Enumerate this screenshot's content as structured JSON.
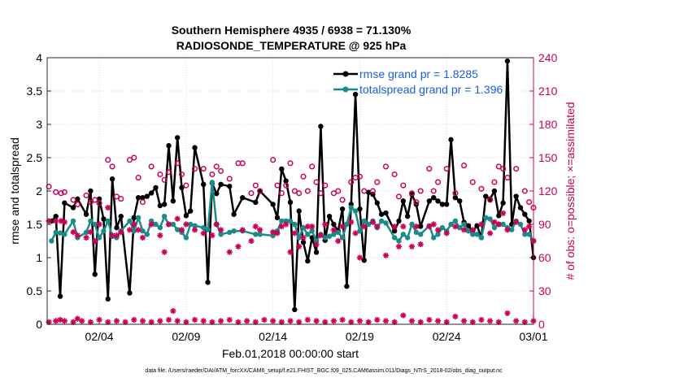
{
  "chart_data": {
    "type": "line",
    "title": "Southern Hemisphere 4935 / 6938 = 71.130%",
    "subtitle": "RADIOSONDE_TEMPERATURE @ 925 hPa",
    "xlabel": "Feb.01,2018 00:00:00 start",
    "ylabel": "rmse and totalspread",
    "y2label": "# of obs: o=possible; ×=assimilated",
    "xlim": [
      0,
      28
    ],
    "ylim": [
      0,
      4
    ],
    "y2lim": [
      0,
      240
    ],
    "x_ticks": [
      3,
      8,
      13,
      18,
      23,
      28
    ],
    "x_tick_labels": [
      "02/04",
      "02/09",
      "02/14",
      "02/19",
      "02/24",
      "03/01"
    ],
    "y_ticks": [
      0,
      0.5,
      1,
      1.5,
      2,
      2.5,
      3,
      3.5,
      4
    ],
    "y_tick_labels": [
      "0",
      "0.5",
      "1",
      "1.5",
      "2",
      "2.5",
      "3",
      "3.5",
      "4"
    ],
    "y2_ticks": [
      0,
      30,
      60,
      90,
      120,
      150,
      180,
      210,
      240
    ],
    "y2_tick_labels": [
      "0",
      "30",
      "60",
      "90",
      "120",
      "150",
      "180",
      "210",
      "240"
    ],
    "legend": [
      {
        "name": "rmse grand pr = 1.8285",
        "color": "#000000"
      },
      {
        "name": "totalspread grand pr = 1.396",
        "color": "#1a8a8a"
      }
    ],
    "series": [
      {
        "name": "rmse",
        "color": "#000000",
        "x": [
          0.25,
          0.5,
          0.75,
          1.0,
          1.5,
          1.75,
          2.25,
          2.5,
          2.75,
          3.0,
          3.25,
          3.5,
          3.75,
          4.0,
          4.25,
          4.75,
          5.0,
          5.25,
          5.5,
          5.75,
          6.0,
          6.25,
          6.5,
          6.75,
          7.0,
          7.25,
          7.5,
          7.75,
          8.0,
          8.25,
          8.5,
          9.0,
          9.25,
          9.5,
          9.75,
          10.0,
          10.5,
          10.75,
          11.25,
          12.0,
          12.25,
          13.0,
          13.25,
          13.5,
          13.75,
          14.0,
          14.25,
          14.5,
          14.75,
          15.0,
          15.25,
          15.5,
          15.75,
          16.0,
          16.25,
          16.5,
          16.75,
          17.0,
          17.25,
          17.5,
          17.75,
          18.0,
          18.25,
          18.5,
          18.75,
          19.0,
          19.25,
          19.5,
          20.0,
          20.25,
          20.5,
          20.75,
          21.0,
          21.25,
          21.5,
          22.0,
          22.25,
          22.5,
          22.75,
          23.0,
          23.25,
          23.5,
          23.75,
          24.0,
          24.25,
          24.5,
          24.75,
          25.0,
          25.25,
          25.5,
          25.75,
          26.0,
          26.25,
          26.5,
          26.75,
          27.0,
          27.25,
          27.5,
          27.75,
          28.0
        ],
        "values": [
          1.55,
          1.62,
          0.42,
          1.82,
          1.75,
          1.88,
          1.65,
          2.0,
          0.75,
          1.88,
          1.58,
          0.38,
          2.18,
          1.45,
          1.62,
          0.47,
          1.6,
          1.9,
          1.9,
          1.92,
          1.97,
          2.05,
          1.78,
          1.8,
          2.68,
          1.85,
          2.8,
          2.05,
          1.63,
          1.7,
          2.65,
          2.1,
          0.63,
          2.12,
          1.96,
          2.1,
          2.07,
          1.65,
          1.9,
          1.83,
          2.0,
          1.8,
          1.6,
          2.33,
          2.15,
          1.83,
          0.22,
          1.7,
          1.23,
          0.95,
          1.3,
          1.08,
          2.97,
          1.26,
          1.62,
          1.5,
          1.4,
          1.73,
          0.57,
          1.8,
          3.45,
          1.73,
          0.96,
          1.98,
          1.95,
          1.82,
          1.65,
          1.67,
          1.4,
          1.55,
          1.85,
          1.62,
          1.95,
          1.8,
          1.47,
          1.85,
          1.9,
          1.85,
          1.8,
          1.8,
          2.77,
          1.9,
          1.85,
          1.53,
          1.48,
          1.4,
          1.48,
          1.3,
          1.92,
          1.88,
          2.0,
          1.63,
          1.82,
          3.95,
          1.5,
          1.92,
          1.75,
          1.65,
          1.55,
          1.0
        ]
      },
      {
        "name": "totalspread",
        "color": "#1a8a8a",
        "x": [
          0.25,
          0.5,
          0.75,
          1.0,
          1.5,
          1.75,
          2.25,
          2.5,
          2.75,
          3.0,
          3.25,
          3.5,
          3.75,
          4.0,
          4.25,
          4.75,
          5.0,
          5.25,
          5.5,
          5.75,
          6.0,
          6.25,
          6.5,
          6.75,
          7.0,
          7.25,
          7.5,
          7.75,
          8.0,
          8.25,
          8.5,
          9.0,
          9.25,
          9.5,
          9.75,
          10.0,
          10.5,
          10.75,
          11.25,
          12.0,
          12.25,
          13.0,
          13.25,
          13.5,
          13.75,
          14.0,
          14.25,
          14.5,
          14.75,
          15.0,
          15.25,
          15.5,
          15.75,
          16.0,
          16.25,
          16.5,
          16.75,
          17.0,
          17.25,
          17.5,
          17.75,
          18.0,
          18.25,
          18.5,
          18.75,
          19.0,
          19.25,
          19.5,
          20.0,
          20.25,
          20.5,
          20.75,
          21.0,
          21.25,
          21.5,
          22.0,
          22.25,
          22.5,
          22.75,
          23.0,
          23.25,
          23.5,
          23.75,
          24.0,
          24.25,
          24.5,
          24.75,
          25.0,
          25.25,
          25.5,
          25.75,
          26.0,
          26.25,
          26.5,
          26.75,
          27.0,
          27.25,
          27.5,
          27.75,
          28.0
        ],
        "values": [
          1.25,
          1.38,
          1.37,
          1.35,
          1.55,
          1.3,
          1.38,
          1.55,
          1.5,
          1.3,
          1.4,
          1.55,
          1.32,
          1.3,
          1.4,
          1.55,
          1.4,
          1.6,
          1.4,
          1.35,
          1.55,
          1.5,
          1.45,
          1.62,
          1.5,
          1.5,
          1.42,
          1.38,
          1.3,
          1.5,
          1.48,
          1.45,
          1.42,
          2.13,
          1.5,
          1.35,
          1.38,
          1.4,
          1.4,
          1.35,
          1.35,
          1.33,
          1.4,
          1.55,
          1.55,
          1.55,
          1.5,
          1.3,
          1.45,
          1.35,
          1.4,
          1.25,
          1.35,
          1.3,
          1.32,
          1.35,
          1.38,
          1.3,
          1.5,
          1.75,
          1.7,
          1.4,
          1.55,
          1.5,
          1.55,
          1.45,
          1.55,
          1.52,
          1.3,
          1.25,
          1.35,
          1.3,
          1.5,
          1.38,
          1.35,
          1.48,
          1.3,
          1.35,
          1.45,
          1.4,
          1.5,
          1.55,
          1.45,
          1.5,
          1.4,
          1.35,
          1.35,
          1.3,
          1.6,
          1.58,
          1.45,
          1.5,
          1.5,
          1.45,
          1.42,
          1.55,
          1.5,
          1.35,
          1.35,
          1.25
        ]
      },
      {
        "name": "obs possible",
        "axis": "right",
        "marker": "o",
        "color": "#cc0055",
        "x": [
          0.1,
          0.5,
          0.8,
          1.0,
          1.5,
          1.75,
          2.25,
          2.5,
          2.75,
          3.0,
          3.5,
          3.75,
          4.0,
          4.25,
          4.75,
          5.0,
          5.25,
          5.5,
          6.0,
          6.5,
          6.75,
          7.0,
          7.5,
          7.75,
          8.0,
          8.5,
          9.0,
          9.5,
          9.75,
          10.0,
          10.5,
          11.0,
          11.25,
          11.75,
          12.0,
          12.25,
          13.0,
          13.25,
          13.5,
          13.75,
          14.0,
          14.25,
          14.5,
          14.75,
          15.0,
          15.25,
          15.5,
          15.75,
          16.0,
          16.5,
          16.75,
          17.0,
          17.5,
          17.75,
          18.0,
          18.25,
          18.75,
          19.0,
          19.5,
          20.0,
          20.25,
          20.5,
          21.0,
          21.25,
          21.5,
          22.0,
          22.25,
          22.5,
          23.0,
          23.5,
          24.0,
          24.5,
          25.0,
          25.5,
          25.75,
          26.0,
          26.25,
          26.5,
          27.0,
          27.5,
          27.75,
          28.0
        ],
        "values": [
          124,
          119,
          118,
          119,
          112,
          108,
          116,
          110,
          112,
          109,
          148,
          142,
          115,
          113,
          148,
          150,
          132,
          110,
          142,
          135,
          130,
          137,
          145,
          135,
          125,
          140,
          140,
          135,
          142,
          138,
          131,
          145,
          145,
          118,
          125,
          120,
          148,
          125,
          118,
          125,
          145,
          120,
          118,
          133,
          120,
          142,
          128,
          118,
          125,
          118,
          120,
          112,
          128,
          132,
          133,
          120,
          120,
          128,
          142,
          135,
          115,
          125,
          118,
          110,
          120,
          140,
          120,
          128,
          140,
          118,
          143,
          128,
          122,
          112,
          128,
          142,
          140,
          132,
          140,
          120,
          110,
          105
        ]
      },
      {
        "name": "obs assimilated",
        "axis": "right",
        "marker": "x",
        "color": "#cc0055",
        "x": [
          0.1,
          0.5,
          0.8,
          1.0,
          1.5,
          1.75,
          2.25,
          2.5,
          2.75,
          3.0,
          3.5,
          3.75,
          4.0,
          4.25,
          4.75,
          5.0,
          5.25,
          5.5,
          6.0,
          6.5,
          6.75,
          7.0,
          7.5,
          7.75,
          8.0,
          8.5,
          9.0,
          9.5,
          9.75,
          10.0,
          10.5,
          11.0,
          11.25,
          11.75,
          12.0,
          12.25,
          13.0,
          13.25,
          13.5,
          13.75,
          14.0,
          14.25,
          14.5,
          14.75,
          15.0,
          15.25,
          15.5,
          15.75,
          16.0,
          16.5,
          16.75,
          17.0,
          17.5,
          17.75,
          18.0,
          18.25,
          18.75,
          19.0,
          19.5,
          20.0,
          20.25,
          20.5,
          21.0,
          21.25,
          21.5,
          22.0,
          22.25,
          22.5,
          23.0,
          23.5,
          24.0,
          24.5,
          25.0,
          25.5,
          25.75,
          26.0,
          26.25,
          26.5,
          27.0,
          27.5,
          27.75,
          28.0
        ],
        "values": [
          93,
          93,
          93,
          92,
          83,
          80,
          78,
          83,
          75,
          90,
          105,
          80,
          80,
          83,
          85,
          90,
          85,
          78,
          90,
          80,
          65,
          90,
          95,
          85,
          90,
          85,
          82,
          80,
          90,
          85,
          65,
          70,
          85,
          75,
          88,
          85,
          83,
          82,
          88,
          90,
          65,
          82,
          70,
          78,
          88,
          88,
          72,
          80,
          90,
          85,
          75,
          88,
          92,
          82,
          60,
          88,
          92,
          88,
          62,
          88,
          70,
          88,
          70,
          88,
          72,
          88,
          90,
          85,
          82,
          88,
          85,
          85,
          90,
          82,
          92,
          90,
          100,
          85,
          92,
          85,
          88,
          75
        ]
      },
      {
        "name": "obs count low",
        "axis": "right",
        "marker": "x",
        "color": "#cc0055",
        "x": [
          0.1,
          0.5,
          0.75,
          1.0,
          1.5,
          1.75,
          2.0,
          2.5,
          3.0,
          3.5,
          4.0,
          4.5,
          5.0,
          5.5,
          6.0,
          6.5,
          7.0,
          7.25,
          7.5,
          8.0,
          8.5,
          9.0,
          9.5,
          10.0,
          10.5,
          11.0,
          11.5,
          12.0,
          12.5,
          13.0,
          13.5,
          14.0,
          14.5,
          15.0,
          15.5,
          16.0,
          16.5,
          17.0,
          17.5,
          18.0,
          18.5,
          19.0,
          19.5,
          20.0,
          20.5,
          21.0,
          21.5,
          22.0,
          22.5,
          23.0,
          23.5,
          24.0,
          24.5,
          25.0,
          25.5,
          26.0,
          26.5,
          27.0,
          27.5,
          28.0
        ],
        "values": [
          2,
          3,
          4,
          3,
          2,
          5,
          3,
          2,
          4,
          2,
          3,
          2,
          4,
          3,
          2,
          3,
          4,
          12,
          3,
          2,
          4,
          3,
          2,
          3,
          4,
          2,
          3,
          2,
          4,
          3,
          2,
          3,
          2,
          4,
          3,
          2,
          3,
          4,
          2,
          3,
          2,
          4,
          3,
          2,
          8,
          3,
          2,
          4,
          3,
          2,
          7,
          3,
          2,
          4,
          3,
          2,
          10,
          3,
          2,
          3
        ]
      }
    ],
    "footer": "data file: /Users/raeder/DAI/ATM_forcXX/CAM6_setup/f.e21.FHIST_BGC.f09_025.CAM6assim.011/Diags_NTrS_2018-02/obs_diag_output.nc"
  }
}
